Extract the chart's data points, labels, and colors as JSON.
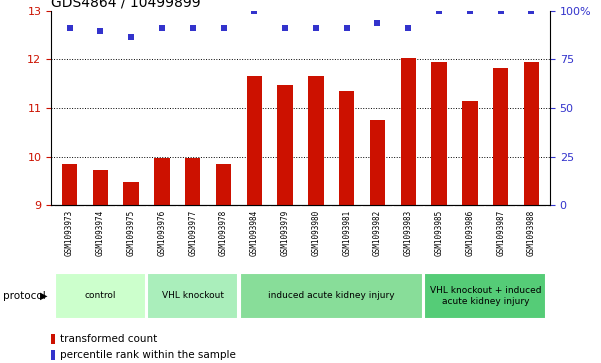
{
  "title": "GDS4864 / 10499899",
  "samples": [
    "GSM1093973",
    "GSM1093974",
    "GSM1093975",
    "GSM1093976",
    "GSM1093977",
    "GSM1093978",
    "GSM1093984",
    "GSM1093979",
    "GSM1093980",
    "GSM1093981",
    "GSM1093982",
    "GSM1093983",
    "GSM1093985",
    "GSM1093986",
    "GSM1093987",
    "GSM1093988"
  ],
  "bar_values": [
    9.85,
    9.72,
    9.48,
    9.97,
    9.97,
    9.85,
    11.65,
    11.48,
    11.65,
    11.35,
    10.75,
    12.02,
    11.95,
    11.15,
    11.82,
    11.95
  ],
  "dot_values": [
    12.65,
    12.58,
    12.47,
    12.65,
    12.65,
    12.65,
    13.0,
    12.65,
    12.65,
    12.65,
    12.75,
    12.65,
    13.0,
    13.0,
    13.0,
    13.0
  ],
  "ylim_left": [
    9,
    13
  ],
  "ylim_right": [
    0,
    100
  ],
  "yticks_left": [
    9,
    10,
    11,
    12,
    13
  ],
  "yticks_right": [
    0,
    25,
    50,
    75,
    100
  ],
  "ytick_labels_right": [
    "0",
    "25",
    "50",
    "75",
    "100%"
  ],
  "bar_color": "#cc1100",
  "dot_color": "#3333cc",
  "groups": [
    {
      "label": "control",
      "start": 0,
      "end": 3,
      "color": "#ccffcc"
    },
    {
      "label": "VHL knockout",
      "start": 3,
      "end": 6,
      "color": "#aaeebb"
    },
    {
      "label": "induced acute kidney injury",
      "start": 6,
      "end": 12,
      "color": "#88dd99"
    },
    {
      "label": "VHL knockout + induced\nacute kidney injury",
      "start": 12,
      "end": 16,
      "color": "#55cc77"
    }
  ],
  "protocol_label": "protocol",
  "legend_bar_label": "transformed count",
  "legend_dot_label": "percentile rank within the sample",
  "title_fontsize": 10,
  "axis_color_left": "#cc1100",
  "axis_color_right": "#3333cc",
  "sample_label_bg": "#cccccc",
  "sample_label_sep": "#ffffff"
}
